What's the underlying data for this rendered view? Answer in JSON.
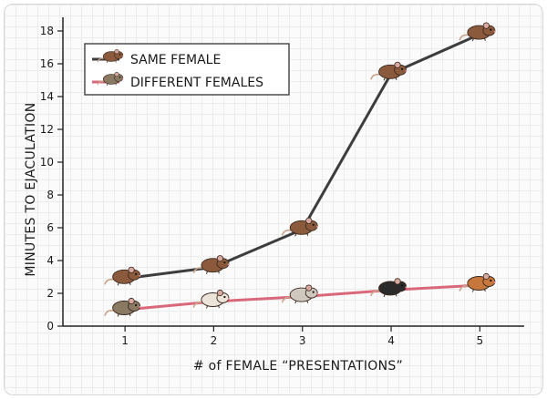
{
  "chart_data": {
    "type": "line",
    "title": "",
    "xlabel": "# of FEMALE “PRESENTATIONS”",
    "ylabel": "MINUTES TO EJACULATION",
    "x": [
      1,
      2,
      3,
      4,
      5
    ],
    "xlim": [
      0.3,
      5.5
    ],
    "ylim": [
      0,
      18.5
    ],
    "yticks": [
      0,
      2,
      4,
      6,
      8,
      10,
      12,
      14,
      16,
      18
    ],
    "grid": true,
    "legend_position": "top-left",
    "series": [
      {
        "name": "SAME FEMALE",
        "color": "#3d3d3d",
        "values": [
          2.9,
          3.6,
          5.9,
          15.4,
          17.8
        ],
        "marker_colors": [
          "#8b5a3c",
          "#8b5a3c",
          "#8b5a3c",
          "#8b5a3c",
          "#8b5a3c"
        ]
      },
      {
        "name": "DIFFERENT FEMALES",
        "color": "#d9687a",
        "values": [
          1.0,
          1.5,
          1.8,
          2.2,
          2.5
        ],
        "marker_colors": [
          "#8a7a64",
          "#ece4d8",
          "#cfc8bf",
          "#2b2b2b",
          "#c8773c"
        ]
      }
    ]
  }
}
